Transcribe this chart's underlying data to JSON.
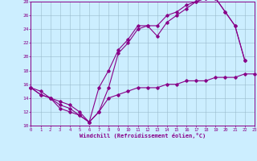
{
  "xlabel": "Windchill (Refroidissement éolien,°C)",
  "bg_color": "#cceeff",
  "line_color": "#880088",
  "grid_color": "#99bbcc",
  "xlim_min": 0,
  "xlim_max": 23,
  "ylim_min": 10,
  "ylim_max": 28,
  "yticks": [
    10,
    12,
    14,
    16,
    18,
    20,
    22,
    24,
    26,
    28
  ],
  "xticks": [
    0,
    1,
    2,
    3,
    4,
    5,
    6,
    7,
    8,
    9,
    10,
    11,
    12,
    13,
    14,
    15,
    16,
    17,
    18,
    19,
    20,
    21,
    22,
    23
  ],
  "line1_x": [
    0,
    1,
    2,
    3,
    4,
    5,
    6,
    7,
    8,
    9,
    10,
    11,
    12,
    13,
    14,
    15,
    16,
    17,
    18,
    19,
    20,
    21,
    22
  ],
  "line1_y": [
    15.5,
    15.0,
    14.0,
    13.0,
    12.5,
    11.5,
    10.5,
    15.5,
    18.0,
    21.0,
    22.5,
    24.5,
    24.5,
    23.0,
    25.0,
    26.0,
    27.0,
    28.0,
    28.5,
    28.5,
    26.5,
    24.5,
    19.5
  ],
  "line2_x": [
    0,
    1,
    2,
    3,
    4,
    5,
    6,
    7,
    8,
    9,
    10,
    11,
    12,
    13,
    14,
    15,
    16,
    17,
    18,
    19,
    20,
    21,
    22
  ],
  "line2_y": [
    15.5,
    14.5,
    14.0,
    12.5,
    12.0,
    11.5,
    10.5,
    12.0,
    15.5,
    20.5,
    22.0,
    24.0,
    24.5,
    24.5,
    26.0,
    26.5,
    27.5,
    28.0,
    28.5,
    28.5,
    26.5,
    24.5,
    19.5
  ],
  "line3_x": [
    0,
    1,
    2,
    3,
    4,
    5,
    6,
    7,
    8,
    9,
    10,
    11,
    12,
    13,
    14,
    15,
    16,
    17,
    18,
    19,
    20,
    21,
    22,
    23
  ],
  "line3_y": [
    15.5,
    14.5,
    14.0,
    13.5,
    13.0,
    12.0,
    10.5,
    12.0,
    14.0,
    14.5,
    15.0,
    15.5,
    15.5,
    15.5,
    16.0,
    16.0,
    16.5,
    16.5,
    16.5,
    17.0,
    17.0,
    17.0,
    17.5,
    17.5
  ]
}
